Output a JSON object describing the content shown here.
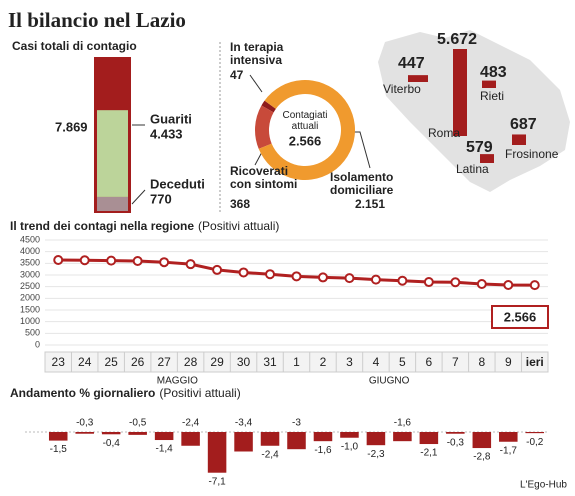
{
  "title": "Il bilancio nel Lazio",
  "source": "L'Ego-Hub",
  "chart_data": [
    {
      "type": "stacked-bar",
      "title": "Casi totali di contagio",
      "total": 7869,
      "total_label": "7.869",
      "total_color": "#a31d1d",
      "categories": [
        "Guariti",
        "Deceduti"
      ],
      "values": [
        4433,
        770
      ],
      "value_labels": [
        "4.433",
        "770"
      ],
      "colors": [
        "#bcd49a",
        "#a98f94"
      ]
    },
    {
      "type": "donut",
      "center_title": "Contagiati\nattuali",
      "center_value": 2566,
      "center_value_label": "2.566",
      "categories": [
        "In terapia\nintensiva",
        "Ricoverati\ncon sintomi",
        "Isolamento\ndomiciliare"
      ],
      "values": [
        47,
        368,
        2151
      ],
      "value_labels": [
        "47",
        "368",
        "2.151"
      ],
      "colors": [
        "#8e1b1b",
        "#c84a3a",
        "#f09a2e"
      ]
    },
    {
      "type": "map",
      "categories": [
        "Viterbo",
        "Roma",
        "Rieti",
        "Frosinone",
        "Latina"
      ],
      "values": [
        447,
        5672,
        483,
        687,
        579
      ],
      "value_labels": [
        "447",
        "5.672",
        "483",
        "687",
        "579"
      ],
      "color": "#a31d1d"
    },
    {
      "type": "line",
      "title": "Il trend dei contagi nella regione",
      "subtitle": "(Positivi attuali)",
      "categories": [
        "23",
        "24",
        "25",
        "26",
        "27",
        "28",
        "29",
        "30",
        "31",
        "1",
        "2",
        "3",
        "4",
        "5",
        "6",
        "7",
        "8",
        "9",
        "ieri"
      ],
      "month_labels": [
        "MAGGIO",
        "GIUGNO"
      ],
      "values": [
        3643,
        3632,
        3617,
        3599,
        3549,
        3464,
        3218,
        3109,
        3034,
        2943,
        2896,
        2867,
        2801,
        2756,
        2698,
        2690,
        2615,
        2571,
        2566
      ],
      "value_labels": [
        null,
        null,
        null,
        null,
        null,
        null,
        null,
        null,
        null,
        null,
        null,
        null,
        null,
        null,
        null,
        null,
        null,
        null,
        "2.566"
      ],
      "ylim": [
        0,
        4500
      ],
      "yticks": [
        0,
        500,
        1000,
        1500,
        2000,
        2500,
        3000,
        3500,
        4000,
        4500
      ],
      "grid": true,
      "color": "#b02020"
    },
    {
      "type": "bar",
      "title": "Andamento % giornaliero",
      "subtitle": "(Positivi attuali)",
      "values": [
        -1.5,
        -0.3,
        -0.4,
        -0.5,
        -1.4,
        -2.4,
        -7.1,
        -3.4,
        -2.4,
        -3,
        -1.6,
        -1.0,
        -2.3,
        -1.6,
        -2.1,
        -0.3,
        -2.8,
        -1.7,
        -0.2
      ],
      "value_labels": [
        "-1,5",
        "-0,3",
        "-0,4",
        "-0,5",
        "-1,4",
        "-2,4",
        "-7,1",
        "-3,4",
        "-2,4",
        "-3",
        "-1,6",
        "-1,0",
        "-2,3",
        "-1,6",
        "-2,1",
        "-0,3",
        "-2,8",
        "-1,7",
        "-0,2"
      ],
      "ylim": [
        -7.5,
        0
      ],
      "color": "#a31d1d"
    }
  ]
}
